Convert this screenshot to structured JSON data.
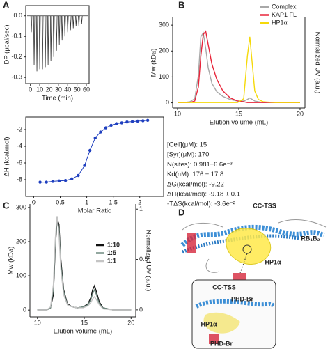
{
  "panel_labels": [
    "A",
    "B",
    "C",
    "D"
  ],
  "chart_data": [
    {
      "type": "spike",
      "x_label": "Time (min)",
      "y_label": "DP (μcal/sec)",
      "color": "#333333",
      "x": [
        1,
        4,
        7,
        10,
        13,
        16,
        19,
        22,
        25,
        28,
        31,
        34,
        37,
        40,
        43,
        46,
        49,
        52,
        55
      ],
      "values": [
        -0.08,
        -0.24,
        -0.27,
        -0.26,
        -0.26,
        -0.25,
        -0.24,
        -0.22,
        -0.2,
        -0.17,
        -0.14,
        -0.12,
        -0.1,
        -0.08,
        -0.07,
        -0.06,
        -0.05,
        -0.05,
        -0.04
      ],
      "xlim": [
        -5,
        63
      ],
      "xticks": [
        0,
        10,
        20,
        30,
        40,
        50,
        60
      ],
      "ylim": [
        -0.33,
        0.05
      ],
      "yticks": [
        {
          "value": 0,
          "label": "0.0"
        },
        -0.1,
        -0.2,
        -0.3
      ]
    },
    {
      "type": "scatter",
      "x_label": "Molar Ratio",
      "y_label": "ΔH (kcal/mol)",
      "color": "#1f3fbf",
      "x": [
        0.12,
        0.24,
        0.36,
        0.48,
        0.6,
        0.72,
        0.84,
        0.96,
        1.06,
        1.16,
        1.26,
        1.36,
        1.46,
        1.56,
        1.66,
        1.76,
        1.86,
        1.96,
        2.06,
        2.15
      ],
      "values": [
        -8.3,
        -8.3,
        -8.2,
        -8.15,
        -8.1,
        -7.9,
        -7.5,
        -6.3,
        -4.5,
        -3,
        -2.3,
        -1.8,
        -1.5,
        -1.3,
        -1.2,
        -1.1,
        -1.05,
        -1,
        -0.95,
        -0.9
      ],
      "xlim": [
        -0.15,
        2.45
      ],
      "xticks": [
        0,
        0.5,
        1,
        1.5,
        2
      ],
      "ylim": [
        -10,
        -0.5
      ],
      "yticks": [
        -8,
        -6,
        -4,
        -2
      ],
      "annotations": [
        "[Cell](μM): 15",
        "[Syr](μM): 170",
        "N(sites): 0.981±6.6e⁻³",
        "Kd(nM): 176 ± 17.8",
        "ΔG(kcal/mol): -9.22",
        "ΔH(kcal/mol): -9.18 ± 0.1",
        "-TΔS(kcal/mol): -3.6e⁻²"
      ]
    },
    {
      "type": "line",
      "x_label": "Elution volume (mL)",
      "y_label": "Mw (kDa)",
      "y2_label": "Normalized UV (a.u.)",
      "x": [
        10,
        10.5,
        11,
        11.4,
        11.7,
        11.9,
        12.1,
        12.3,
        12.5,
        12.8,
        13.2,
        13.7,
        14.3,
        14.9,
        15.4,
        15.7,
        15.9,
        16.1,
        16.3,
        16.6,
        17,
        18,
        19,
        20
      ],
      "series": [
        {
          "name": "Complex",
          "color": "#a8a8a8",
          "axis": "y2",
          "values": [
            0,
            0,
            0.01,
            0.05,
            0.35,
            0.85,
            0.9,
            0.7,
            0.45,
            0.25,
            0.14,
            0.08,
            0.04,
            0.02,
            0.02,
            0.04,
            0.06,
            0.04,
            0.02,
            0.01,
            0,
            0,
            0,
            0
          ]
        },
        {
          "name": "KAP1 FL",
          "color": "#e8253a",
          "axis": "y2",
          "values": [
            0,
            0,
            0,
            0.02,
            0.2,
            0.6,
            0.88,
            0.92,
            0.75,
            0.5,
            0.3,
            0.15,
            0.06,
            0.02,
            0.01,
            0,
            0,
            0,
            0,
            0,
            0,
            0,
            0,
            0
          ]
        },
        {
          "name": "HP1α",
          "color": "#f5d90a",
          "axis": "y2",
          "values": [
            0,
            0,
            0,
            0,
            0,
            0,
            0,
            0,
            0,
            0,
            0,
            0,
            0,
            0,
            0.05,
            0.6,
            0.85,
            0.5,
            0.15,
            0.04,
            0.01,
            0,
            0,
            0
          ]
        }
      ],
      "xlim": [
        9.6,
        20.4
      ],
      "xticks": [
        10,
        15,
        20
      ],
      "ylim": [
        -20,
        330
      ],
      "yticks": [
        0,
        100,
        200,
        300
      ],
      "y2lim": [
        -0.07,
        1.1
      ]
    },
    {
      "type": "line",
      "x_label": "Elution volume (mL)",
      "y_label": "Mw (kDa)",
      "y2_label": "Normalized UV (a.u.)",
      "x": [
        10,
        10.5,
        11,
        11.4,
        11.7,
        11.9,
        12.1,
        12.3,
        12.5,
        12.8,
        13.2,
        13.7,
        14.3,
        14.9,
        15.4,
        15.7,
        15.9,
        16.1,
        16.3,
        16.6,
        17,
        18,
        19,
        20
      ],
      "series": [
        {
          "name": "1:10",
          "color": "#111111",
          "axis": "y2",
          "values": [
            0,
            0,
            0,
            0.02,
            0.15,
            0.6,
            0.9,
            0.85,
            0.5,
            0.2,
            0.06,
            0.03,
            0.02,
            0.03,
            0.06,
            0.12,
            0.2,
            0.24,
            0.18,
            0.08,
            0.02,
            0,
            0,
            0
          ]
        },
        {
          "name": "1:5",
          "color": "#6f8a80",
          "axis": "y2",
          "values": [
            0,
            0,
            0,
            0.02,
            0.2,
            0.65,
            0.92,
            0.8,
            0.45,
            0.18,
            0.05,
            0.03,
            0.02,
            0.03,
            0.05,
            0.1,
            0.16,
            0.2,
            0.15,
            0.06,
            0.02,
            0,
            0,
            0
          ]
        },
        {
          "name": "1:1",
          "color": "#c4c4c4",
          "axis": "y2",
          "values": [
            0,
            0,
            0,
            0.03,
            0.25,
            0.7,
            0.93,
            0.75,
            0.4,
            0.15,
            0.05,
            0.03,
            0.02,
            0.02,
            0.04,
            0.07,
            0.11,
            0.13,
            0.1,
            0.05,
            0.01,
            0,
            0,
            0
          ]
        }
      ],
      "xlim": [
        9.2,
        20.5
      ],
      "xticks": [
        10,
        15,
        20
      ],
      "ylim": [
        -20,
        310
      ],
      "yticks": [
        0,
        100,
        200,
        300
      ],
      "y2lim": [
        -0.07,
        1.05
      ],
      "y2ticks": [
        0,
        0.5,
        1
      ]
    }
  ],
  "structure": {
    "labels": [
      "CC-TSS",
      "RB₁B₂",
      "HP1α",
      "PHD-Br",
      "CC-TSS",
      "HP1α",
      "PHD-Br"
    ]
  }
}
